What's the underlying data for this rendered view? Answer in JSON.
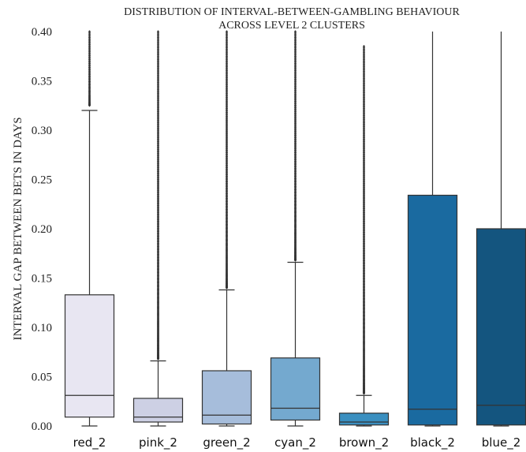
{
  "chart_data": {
    "type": "box",
    "title": "DISTRIBUTION OF INTERVAL-BETWEEN-GAMBLING BEHAVIOUR",
    "subtitle": "ACROSS LEVEL 2 CLUSTERS",
    "xlabel": "",
    "ylabel": "INTERVAL GAP BETWEEN BETS IN DAYS",
    "ylim": [
      0,
      0.4
    ],
    "yticks": [
      "0.00",
      "0.05",
      "0.10",
      "0.15",
      "0.20",
      "0.25",
      "0.30",
      "0.35",
      "0.40"
    ],
    "grid": false,
    "categories": [
      "red_2",
      "pink_2",
      "green_2",
      "cyan_2",
      "brown_2",
      "black_2",
      "blue_2"
    ],
    "colors": [
      "#e8e6f2",
      "#cdd0e4",
      "#a6bddb",
      "#74a9cf",
      "#3a8fc0",
      "#1a6aa0",
      "#14557f"
    ],
    "boxes": [
      {
        "whisker_low": 0.0,
        "q1": 0.009,
        "median": 0.031,
        "q3": 0.133,
        "whisker_high": 0.32,
        "outliers_from": 0.325,
        "outliers_to": 0.4
      },
      {
        "whisker_low": 0.0,
        "q1": 0.004,
        "median": 0.009,
        "q3": 0.028,
        "whisker_high": 0.066,
        "outliers_from": 0.068,
        "outliers_to": 0.4
      },
      {
        "whisker_low": 0.0,
        "q1": 0.002,
        "median": 0.011,
        "q3": 0.056,
        "whisker_high": 0.138,
        "outliers_from": 0.14,
        "outliers_to": 0.4
      },
      {
        "whisker_low": 0.0,
        "q1": 0.006,
        "median": 0.018,
        "q3": 0.069,
        "whisker_high": 0.166,
        "outliers_from": 0.168,
        "outliers_to": 0.4
      },
      {
        "whisker_low": 0.0,
        "q1": 0.001,
        "median": 0.004,
        "q3": 0.013,
        "whisker_high": 0.031,
        "outliers_from": 0.033,
        "outliers_to": 0.385
      },
      {
        "whisker_low": 0.0,
        "q1": 0.001,
        "median": 0.017,
        "q3": 0.234,
        "whisker_high": 0.4,
        "outliers_from": null,
        "outliers_to": null
      },
      {
        "whisker_low": 0.0,
        "q1": 0.001,
        "median": 0.021,
        "q3": 0.2,
        "whisker_high": 0.4,
        "outliers_from": null,
        "outliers_to": null
      }
    ]
  }
}
